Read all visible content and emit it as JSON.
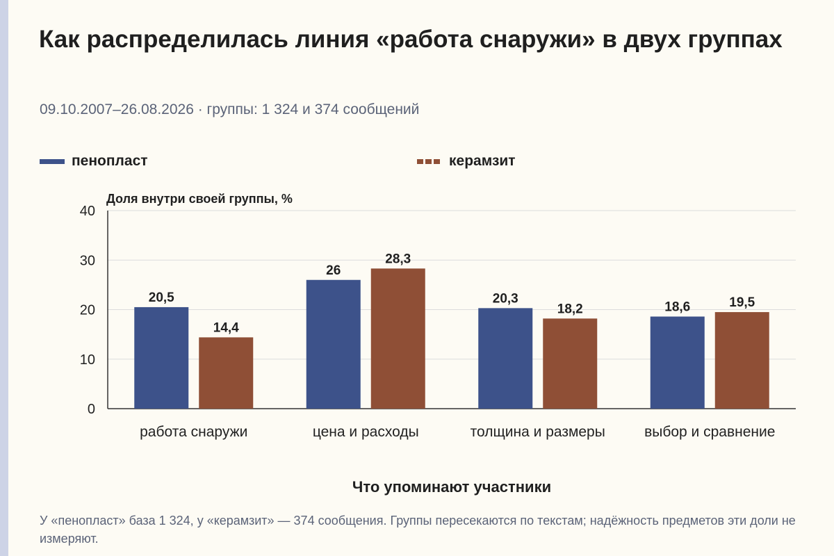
{
  "title": "Как распределилась линия «работа снаружи» в двух группах",
  "subtitle": "09.10.2007–26.08.2026 · группы: 1 324 и 374 сообщений",
  "footer_note": "У «пенопласт» база 1 324, у «керамзит» — 374 сообщения. Группы пересекаются по текстам; надёжность предметов эти доли не измеряют.",
  "chart_data": {
    "type": "bar",
    "categories": [
      "работа снаружи",
      "цена и расходы",
      "толщина и размеры",
      "выбор и сравнение"
    ],
    "series": [
      {
        "name": "пенопласт",
        "values": [
          20.5,
          26,
          20.3,
          18.6
        ],
        "labels": [
          "20,5",
          "26",
          "20,3",
          "18,6"
        ],
        "color": "#3d528a"
      },
      {
        "name": "керамзит",
        "values": [
          14.4,
          28.3,
          18.2,
          19.5
        ],
        "labels": [
          "14,4",
          "28,3",
          "18,2",
          "19,5"
        ],
        "color": "#8f4f36"
      }
    ],
    "ylabel": "Доля внутри своей группы, %",
    "xlabel": "Что упоминают участники",
    "ylim": [
      0,
      40
    ],
    "yticks": [
      0,
      10,
      20,
      30,
      40
    ],
    "grid": true,
    "legend_position": "top"
  }
}
